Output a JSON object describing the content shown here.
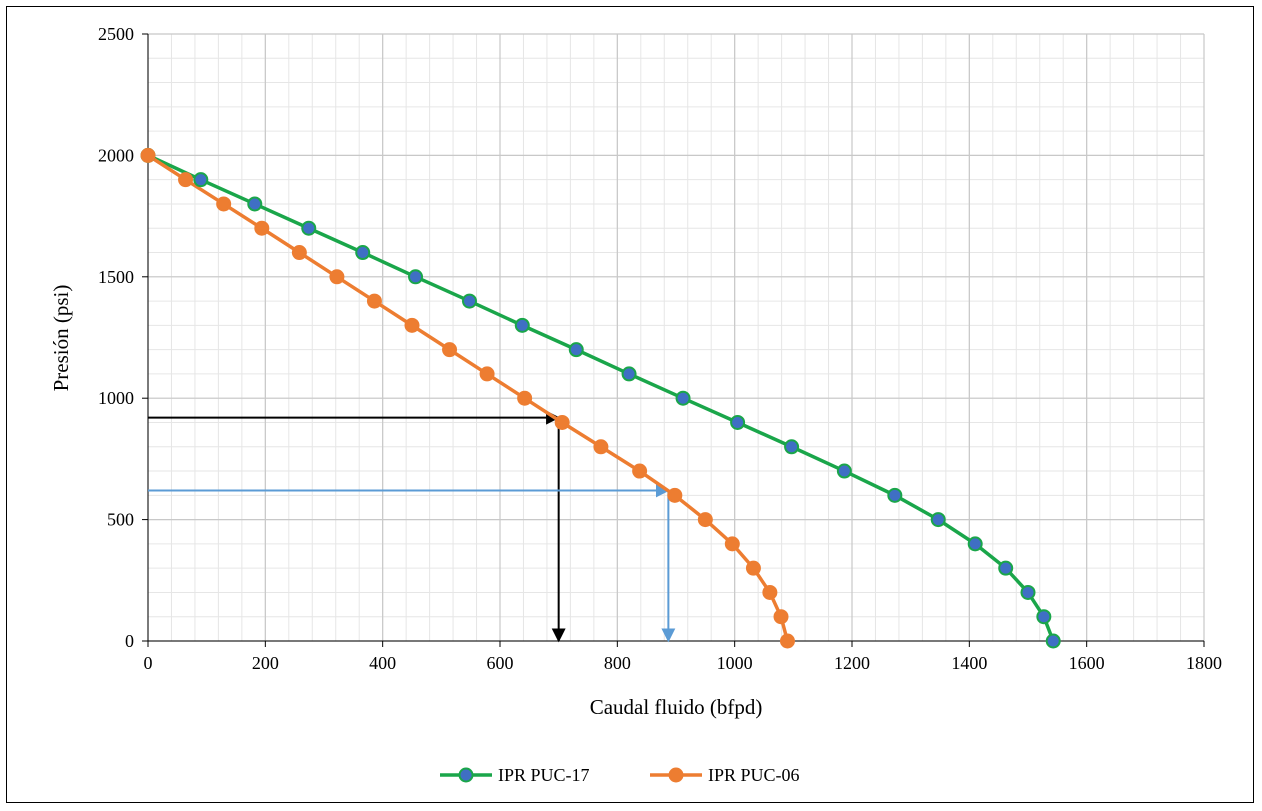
{
  "chart_data": {
    "type": "line",
    "xlabel": "Caudal fluido (bfpd)",
    "ylabel": "Presión (psi)",
    "xlim": [
      0,
      1800
    ],
    "ylim": [
      0,
      2500
    ],
    "x_ticks": [
      0,
      200,
      400,
      600,
      800,
      1000,
      1200,
      1400,
      1600,
      1800
    ],
    "y_ticks": [
      0,
      500,
      1000,
      1500,
      2000,
      2500
    ],
    "grid": true,
    "legend_position": "bottom",
    "series": [
      {
        "name": "IPR PUC-17",
        "line_color": "#1aa64a",
        "marker_color": "#3f6fc4",
        "points": [
          [
            0,
            2000
          ],
          [
            90,
            1900
          ],
          [
            182,
            1800
          ],
          [
            274,
            1700
          ],
          [
            366,
            1600
          ],
          [
            456,
            1500
          ],
          [
            548,
            1400
          ],
          [
            638,
            1300
          ],
          [
            730,
            1200
          ],
          [
            820,
            1100
          ],
          [
            912,
            1000
          ],
          [
            1005,
            900
          ],
          [
            1097,
            800
          ],
          [
            1187,
            700
          ],
          [
            1273,
            600
          ],
          [
            1347,
            500
          ],
          [
            1410,
            400
          ],
          [
            1462,
            300
          ],
          [
            1500,
            200
          ],
          [
            1527,
            100
          ],
          [
            1543,
            0
          ]
        ]
      },
      {
        "name": "IPR PUC-06",
        "line_color": "#ed7d31",
        "marker_color": "#ed7d31",
        "points": [
          [
            0,
            2000
          ],
          [
            64,
            1900
          ],
          [
            129,
            1800
          ],
          [
            194,
            1700
          ],
          [
            258,
            1600
          ],
          [
            322,
            1500
          ],
          [
            386,
            1400
          ],
          [
            450,
            1300
          ],
          [
            514,
            1200
          ],
          [
            578,
            1100
          ],
          [
            642,
            1000
          ],
          [
            706,
            900
          ],
          [
            772,
            800
          ],
          [
            838,
            700
          ],
          [
            898,
            600
          ],
          [
            950,
            500
          ],
          [
            996,
            400
          ],
          [
            1032,
            300
          ],
          [
            1060,
            200
          ],
          [
            1079,
            100
          ],
          [
            1090,
            0
          ]
        ]
      }
    ],
    "annotations": [
      {
        "color": "#000000",
        "y": 920,
        "x": 700
      },
      {
        "color": "#5b9bd5",
        "y": 620,
        "x": 887
      }
    ]
  }
}
